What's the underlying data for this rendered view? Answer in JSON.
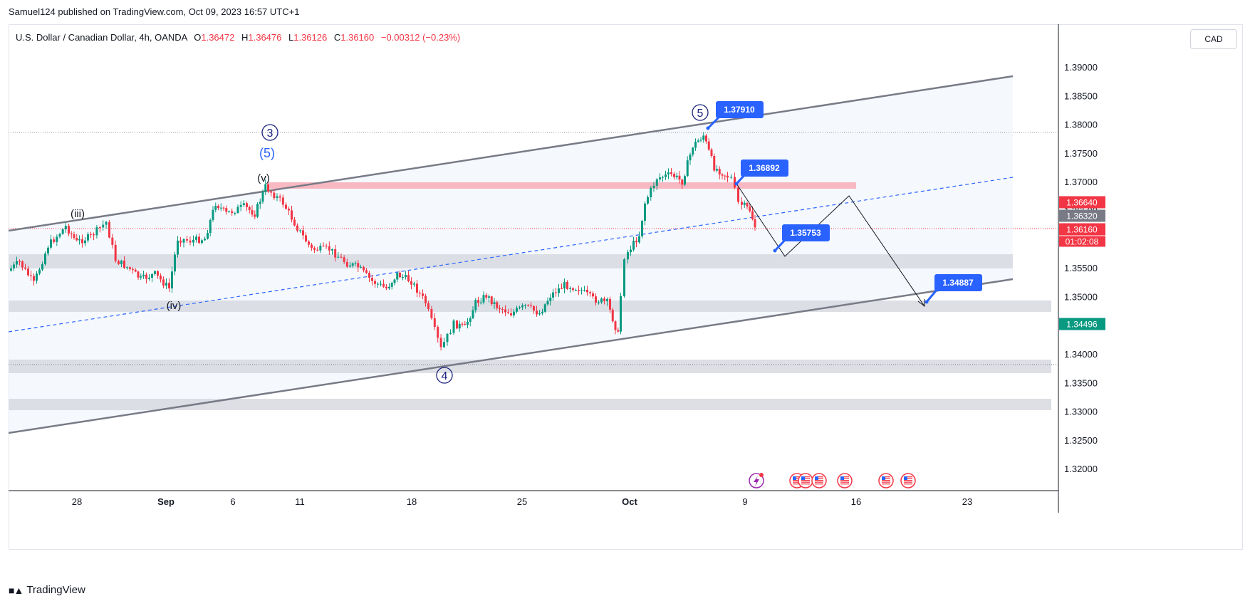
{
  "header": {
    "published": "Samuel124 published on TradingView.com, Oct 09, 2023 16:57 UTC+1",
    "symbol": "U.S. Dollar / Canadian Dollar, 4h, OANDA",
    "o_label": "O",
    "o_value": "1.36472",
    "h_label": "H",
    "h_value": "1.36476",
    "l_label": "L",
    "l_value": "1.36126",
    "c_label": "C",
    "c_value": "1.36160",
    "change": "−0.00312 (−0.23%)"
  },
  "currency_button": "CAD",
  "brand": "TradingView",
  "colors": {
    "up": "#089981",
    "down": "#f23645",
    "channel": "#787b86",
    "midline": "#2962ff",
    "callout": "#2962ff",
    "zone": "#d1d4dc",
    "resistance": "#f7a8b3"
  },
  "chart_data": {
    "type": "candlestick",
    "title": "U.S. Dollar / Canadian Dollar, 4h, OANDA",
    "ylim": [
      1.315,
      1.394
    ],
    "y_ticks": [
      "1.39000",
      "1.38500",
      "1.38000",
      "1.37500",
      "1.37000",
      "1.36500",
      "1.36000",
      "1.35500",
      "1.35000",
      "1.34500",
      "1.34000",
      "1.33500",
      "1.33000",
      "1.32500",
      "1.32000"
    ],
    "x_ticks": [
      "28",
      "Sep",
      "6",
      "11",
      "18",
      "25",
      "Oct",
      "9",
      "16",
      "23"
    ],
    "price_labels": [
      {
        "text": "1.36640",
        "color": "#f23645"
      },
      {
        "text": "1.36320",
        "color": "#787b86"
      },
      {
        "text": "1.36160",
        "color": "#f23645"
      },
      {
        "text": "01:02:08",
        "color": "#f23645"
      },
      {
        "text": "1.34496",
        "color": "#089981"
      }
    ],
    "callouts": [
      "1.37910",
      "1.36892",
      "1.35753",
      "1.34887"
    ],
    "wave_labels": {
      "circled": [
        "3",
        "5",
        "4"
      ],
      "paren": [
        "(5)"
      ],
      "roman": [
        "(iii)",
        "(v)",
        "(iv)"
      ]
    }
  }
}
